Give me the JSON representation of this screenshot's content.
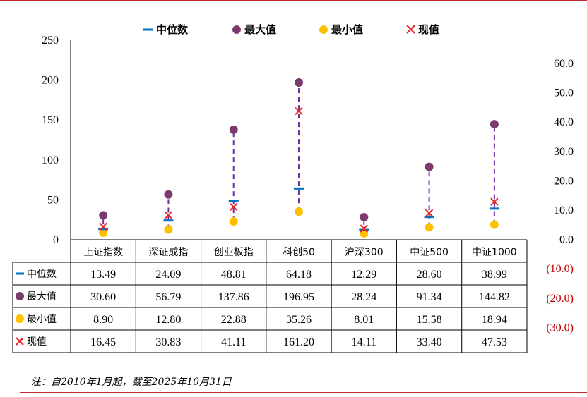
{
  "chart_data": {
    "type": "scatter",
    "categories": [
      "上证指数",
      "深证成指",
      "创业板指",
      "科创50",
      "沪深300",
      "中证500",
      "中证1000"
    ],
    "series": [
      {
        "name": "中位数",
        "marker": "dash",
        "color": "#0070c0",
        "values": [
          13.49,
          24.09,
          48.81,
          64.18,
          12.29,
          28.6,
          38.99
        ]
      },
      {
        "name": "最大值",
        "marker": "circle",
        "color": "#7b3b6e",
        "values": [
          30.6,
          56.79,
          137.86,
          196.95,
          28.24,
          91.34,
          144.82
        ]
      },
      {
        "name": "最小值",
        "marker": "circle",
        "color": "#ffc000",
        "values": [
          8.9,
          12.8,
          22.88,
          35.26,
          8.01,
          15.58,
          18.94
        ]
      },
      {
        "name": "现值",
        "marker": "x",
        "color": "#e8262b",
        "values": [
          16.45,
          30.83,
          41.11,
          161.2,
          14.11,
          33.4,
          47.53
        ]
      }
    ],
    "range_line_color": "#7030a0",
    "ylim": [
      0,
      250
    ],
    "yticks": [
      "250",
      "200",
      "150",
      "100",
      "50",
      "0"
    ],
    "y2lim": [
      -30,
      60
    ],
    "y2ticks": [
      "60.0",
      "50.0",
      "40.0",
      "30.0",
      "20.0",
      "10.0",
      "0.0",
      "(10.0)",
      "(20.0)",
      "(30.0)"
    ],
    "table": [
      [
        "13.49",
        "24.09",
        "48.81",
        "64.18",
        "12.29",
        "28.60",
        "38.99"
      ],
      [
        "30.60",
        "56.79",
        "137.86",
        "196.95",
        "28.24",
        "91.34",
        "144.82"
      ],
      [
        "8.90",
        "12.80",
        "22.88",
        "35.26",
        "8.01",
        "15.58",
        "18.94"
      ],
      [
        "16.45",
        "30.83",
        "41.11",
        "161.20",
        "14.11",
        "33.40",
        "47.53"
      ]
    ],
    "legend_position": "top",
    "grid": false
  },
  "note": "注：自2010年1月起，截至2025年10月31日"
}
